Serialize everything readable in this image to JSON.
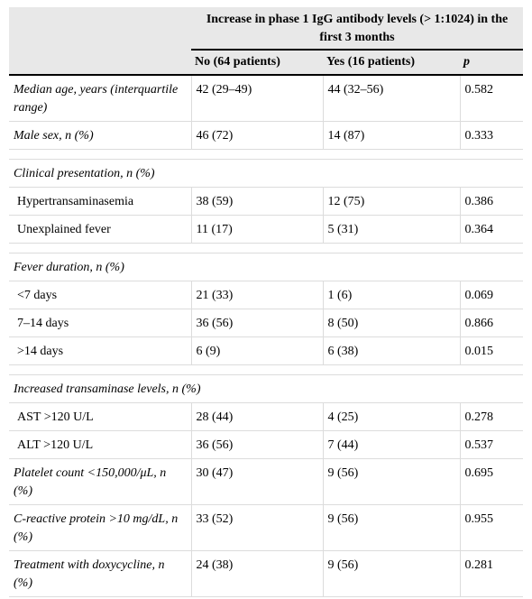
{
  "table": {
    "header": {
      "group_label": "Increase in phase 1 IgG antibody levels (> 1:1024) in the first 3 months",
      "col_no": "No (64 patients)",
      "col_yes": "Yes (16 patients)",
      "col_p": "p"
    },
    "rows": [
      {
        "label": "Median age, years (interquartile range)",
        "no": "42 (29–49)",
        "yes": "44 (32–56)",
        "p": "0.582"
      },
      {
        "label": "Male sex, n (%)",
        "no": "46 (72)",
        "yes": "14 (87)",
        "p": "0.333"
      },
      {
        "section": "Clinical presentation, n (%)"
      },
      {
        "label": "Hypertransaminasemia",
        "no": "38 (59)",
        "yes": "12 (75)",
        "p": "0.386"
      },
      {
        "label": "Unexplained fever",
        "no": "11 (17)",
        "yes": "5 (31)",
        "p": "0.364"
      },
      {
        "section": "Fever duration, n (%)"
      },
      {
        "label": "<7 days",
        "no": "21 (33)",
        "yes": "1 (6)",
        "p": "0.069"
      },
      {
        "label": "7–14 days",
        "no": "36 (56)",
        "yes": "8 (50)",
        "p": "0.866"
      },
      {
        "label": ">14 days",
        "no": "6 (9)",
        "yes": "6 (38)",
        "p": "0.015"
      },
      {
        "section": "Increased transaminase levels, n (%)"
      },
      {
        "label": "AST >120 U/L",
        "no": "28 (44)",
        "yes": "4 (25)",
        "p": "0.278"
      },
      {
        "label": "ALT >120 U/L",
        "no": "36 (56)",
        "yes": "7 (44)",
        "p": "0.537"
      },
      {
        "label": "Platelet count <150,000/μL, n (%)",
        "no": "30 (47)",
        "yes": "9 (56)",
        "p": "0.695"
      },
      {
        "label": "C-reactive protein >10 mg/dL, n (%)",
        "no": "33 (52)",
        "yes": "9 (56)",
        "p": "0.955"
      },
      {
        "label": "Treatment with doxycycline, n (%)",
        "no": "24 (38)",
        "yes": "9 (56)",
        "p": "0.281"
      }
    ]
  }
}
